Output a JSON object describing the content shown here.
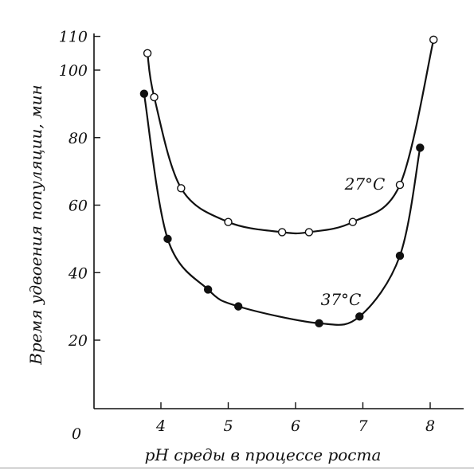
{
  "chart_data": {
    "type": "line",
    "title": "",
    "xlabel": "pH среды в процессе роста",
    "ylabel": "Время удвоения популяции, мин",
    "origin_label": "0",
    "xlim": [
      3.0,
      8.5
    ],
    "ylim": [
      0,
      110
    ],
    "xticks": [
      4,
      5,
      6,
      7,
      8
    ],
    "xtick_labels": [
      "4",
      "5",
      "6",
      "7",
      "8"
    ],
    "yticks": [
      20,
      40,
      60,
      80,
      100,
      110
    ],
    "ytick_labels": [
      "20",
      "40",
      "60",
      "80",
      "100",
      "110"
    ],
    "grid": false,
    "series": [
      {
        "name": "27°C",
        "marker": "open-circle",
        "x": [
          3.8,
          3.9,
          4.3,
          5.0,
          5.8,
          6.2,
          6.85,
          7.55,
          8.05
        ],
        "y": [
          105,
          92,
          65,
          55,
          52,
          52,
          55,
          66,
          109
        ]
      },
      {
        "name": "37°C",
        "marker": "filled-circle",
        "x": [
          3.75,
          4.1,
          4.7,
          5.15,
          6.35,
          6.95,
          7.55,
          7.85
        ],
        "y": [
          93,
          50,
          35,
          30,
          25,
          27,
          45,
          77
        ]
      }
    ]
  }
}
